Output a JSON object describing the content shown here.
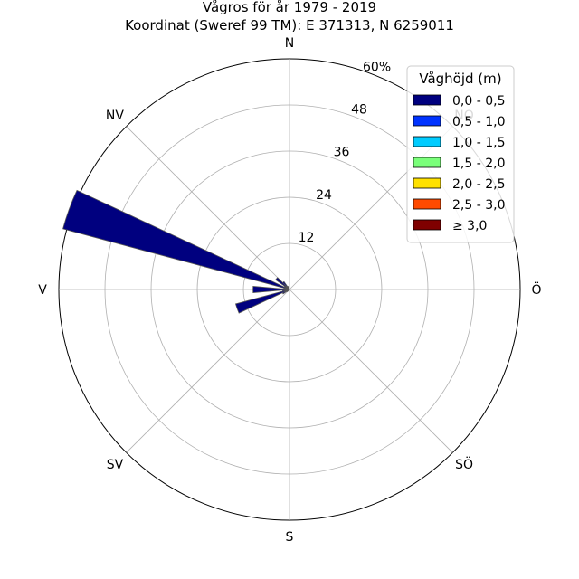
{
  "chart_data": {
    "type": "windrose",
    "title": "Vågros för år 1979 - 2019",
    "subtitle": "Koordinat (Sweref 99 TM): E 371313, N 6259011",
    "directions": [
      "N",
      "NO",
      "Ö",
      "SÖ",
      "S",
      "SV",
      "V",
      "NV"
    ],
    "radial_ticks": [
      "12",
      "24",
      "36",
      "48",
      "60%"
    ],
    "rmax": 60,
    "grid": true,
    "legend": {
      "title": "Våghöjd (m)",
      "placement": "top-right",
      "entries": [
        {
          "label": "0,0 - 0,5",
          "color": "#00007f"
        },
        {
          "label": "0,5 - 1,0",
          "color": "#0033ff"
        },
        {
          "label": "1,0 - 1,5",
          "color": "#00ccff"
        },
        {
          "label": "1,5 - 2,0",
          "color": "#7aff7a"
        },
        {
          "label": "2,0 - 2,5",
          "color": "#ffe100"
        },
        {
          "label": "2,5 - 3,0",
          "color": "#ff4a00"
        },
        {
          "label": "≥ 3,0",
          "color": "#7f0000"
        }
      ]
    },
    "sector_width_deg": 10,
    "series": [
      {
        "name": "0,0 - 0,5",
        "color": "#00007f",
        "points": [
          {
            "direction_deg": 290,
            "value": 61
          },
          {
            "direction_deg": 300,
            "value": 1.5
          },
          {
            "direction_deg": 310,
            "value": 4.4
          },
          {
            "direction_deg": 320,
            "value": 2.5
          },
          {
            "direction_deg": 330,
            "value": 0.9
          },
          {
            "direction_deg": 260,
            "value": 1.8
          },
          {
            "direction_deg": 270,
            "value": 9.5
          },
          {
            "direction_deg": 280,
            "value": 1.5
          },
          {
            "direction_deg": 250,
            "value": 14.5
          },
          {
            "direction_deg": 240,
            "value": 2.0
          },
          {
            "direction_deg": 230,
            "value": 0.8
          }
        ]
      }
    ]
  }
}
